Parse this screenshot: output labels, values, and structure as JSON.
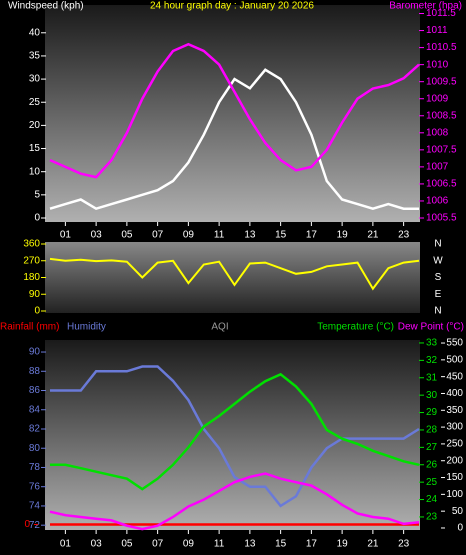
{
  "chart_data": [
    {
      "type": "line",
      "title": "24 hour graph day : January 20 2026",
      "x": [
        0,
        1,
        2,
        3,
        4,
        5,
        6,
        7,
        8,
        9,
        10,
        11,
        12,
        13,
        14,
        15,
        16,
        17,
        18,
        19,
        20,
        21,
        22,
        23,
        24
      ],
      "xlim": [
        0,
        24
      ],
      "xticks": [
        {
          "value": 1,
          "label": "01"
        },
        {
          "value": 3,
          "label": "03"
        },
        {
          "value": 5,
          "label": "05"
        },
        {
          "value": 7,
          "label": "07"
        },
        {
          "value": 9,
          "label": "09"
        },
        {
          "value": 11,
          "label": "11"
        },
        {
          "value": 13,
          "label": "13"
        },
        {
          "value": 15,
          "label": "15"
        },
        {
          "value": 17,
          "label": "17"
        },
        {
          "value": 19,
          "label": "19"
        },
        {
          "value": 21,
          "label": "21"
        },
        {
          "value": 23,
          "label": "23"
        }
      ],
      "ylim": [
        0,
        46
      ],
      "yticks": [
        0,
        5,
        10,
        15,
        20,
        25,
        30,
        35,
        40
      ],
      "y2lim": [
        1005.5,
        1011.75
      ],
      "y2ticks": [
        1005.5,
        1006,
        1006.5,
        1007,
        1007.5,
        1008,
        1008.5,
        1009,
        1009.5,
        1010,
        1010.5,
        1011,
        1011.5
      ],
      "series": [
        {
          "name": "Windspeed (kph)",
          "color": "#ffffff",
          "axis": "y",
          "values": [
            2,
            3,
            4,
            2,
            3,
            4,
            5,
            6,
            8,
            12,
            18,
            25,
            30,
            28,
            32,
            30,
            25,
            18,
            8,
            4,
            3,
            2,
            3,
            2,
            2
          ]
        },
        {
          "name": "Barometer (hpa)",
          "color": "#ff00ff",
          "axis": "y2",
          "values": [
            1007.2,
            1007.0,
            1006.8,
            1006.7,
            1007.2,
            1008.0,
            1009.0,
            1009.8,
            1010.4,
            1010.6,
            1010.4,
            1010.0,
            1009.2,
            1008.4,
            1007.7,
            1007.2,
            1006.9,
            1007.0,
            1007.5,
            1008.3,
            1009.0,
            1009.3,
            1009.4,
            1009.6,
            1010.0
          ]
        }
      ]
    },
    {
      "type": "line",
      "x": [
        0,
        1,
        2,
        3,
        4,
        5,
        6,
        7,
        8,
        9,
        10,
        11,
        12,
        13,
        14,
        15,
        16,
        17,
        18,
        19,
        20,
        21,
        22,
        23,
        24
      ],
      "xlim": [
        0,
        24
      ],
      "ylim": [
        0,
        360
      ],
      "yticks": [
        0,
        90,
        180,
        270,
        360
      ],
      "direction_labels": [
        "N",
        "W",
        "S",
        "E",
        "N"
      ],
      "series": [
        {
          "color": "#ffff00",
          "axis": "y",
          "values": [
            280,
            270,
            275,
            268,
            272,
            265,
            180,
            260,
            270,
            150,
            250,
            265,
            140,
            255,
            260,
            230,
            200,
            210,
            240,
            250,
            260,
            120,
            230,
            260,
            270
          ]
        }
      ]
    },
    {
      "type": "line",
      "x": [
        0,
        1,
        2,
        3,
        4,
        5,
        6,
        7,
        8,
        9,
        10,
        11,
        12,
        13,
        14,
        15,
        16,
        17,
        18,
        19,
        20,
        21,
        22,
        23,
        24
      ],
      "xlim": [
        0,
        24
      ],
      "xticks": [
        {
          "value": 1,
          "label": "01"
        },
        {
          "value": 3,
          "label": "03"
        },
        {
          "value": 5,
          "label": "05"
        },
        {
          "value": 7,
          "label": "07"
        },
        {
          "value": 9,
          "label": "09"
        },
        {
          "value": 11,
          "label": "11"
        },
        {
          "value": 13,
          "label": "13"
        },
        {
          "value": 15,
          "label": "15"
        },
        {
          "value": 17,
          "label": "17"
        },
        {
          "value": 19,
          "label": "19"
        },
        {
          "value": 21,
          "label": "21"
        },
        {
          "value": 23,
          "label": "23"
        }
      ],
      "ylim": [
        71.5,
        91.25
      ],
      "yticks": [
        72,
        74,
        76,
        78,
        80,
        82,
        84,
        86,
        88,
        90
      ],
      "y2lim": [
        22.25,
        33.17
      ],
      "y2ticks": [
        23,
        24,
        25,
        26,
        27,
        28,
        29,
        30,
        31,
        32,
        33
      ],
      "y3_label": "AQI",
      "y3lim": [
        -6,
        559
      ],
      "y3ticks": [
        0,
        50,
        100,
        150,
        200,
        250,
        300,
        350,
        400,
        450,
        500,
        550
      ],
      "rainlim": [
        -0.15,
        5
      ],
      "rainticks": [
        0
      ],
      "series": [
        {
          "name": "Rainfall (mm)",
          "color": "#ff0000",
          "axis": "rain",
          "values": [
            0,
            0,
            0,
            0,
            0,
            0,
            0,
            0,
            0,
            0,
            0,
            0,
            0,
            0,
            0,
            0,
            0,
            0,
            0,
            0,
            0,
            0,
            0,
            0,
            0
          ]
        },
        {
          "name": "Humidity",
          "color": "#6a7ad8",
          "axis": "y",
          "values": [
            86,
            86,
            86,
            88,
            88,
            88,
            88.5,
            88.5,
            87,
            85,
            82,
            80,
            77,
            76,
            76,
            74,
            75,
            78,
            80,
            81,
            81,
            81,
            81,
            81,
            82
          ]
        },
        {
          "name": "Temperature (°C)",
          "color": "#00e000",
          "axis": "y2",
          "values": [
            26,
            26,
            25.8,
            25.6,
            25.4,
            25.2,
            24.6,
            25.2,
            26,
            27,
            28.2,
            28.8,
            29.5,
            30.2,
            30.8,
            31.2,
            30.5,
            29.5,
            28,
            27.5,
            27.2,
            26.8,
            26.5,
            26.2,
            26
          ]
        },
        {
          "name": "Dew Point (°C)",
          "color": "#ff00ff",
          "axis": "y2",
          "values": [
            23.3,
            23.1,
            23,
            22.9,
            22.8,
            22.5,
            22.3,
            22.5,
            23,
            23.6,
            24,
            24.5,
            25,
            25.3,
            25.5,
            25.2,
            25,
            24.8,
            24.3,
            23.7,
            23.2,
            23,
            22.9,
            22.6,
            22.7
          ]
        }
      ]
    }
  ]
}
